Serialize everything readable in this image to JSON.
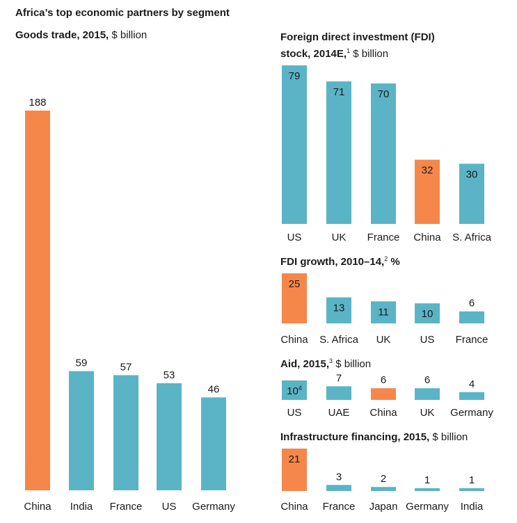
{
  "title": "Africa’s top economic partners by segment",
  "colors": {
    "highlight": "#F5874B",
    "default": "#5AB4C6",
    "text": "#1a1a1a"
  },
  "chart_data": [
    {
      "id": "goods",
      "type": "bar",
      "title_bold": "Goods trade, 2015,",
      "title_sup": "",
      "title_unit": " $ billion",
      "categories": [
        "China",
        "India",
        "France",
        "US",
        "Germany"
      ],
      "values": [
        188,
        59,
        57,
        53,
        46
      ],
      "value_labels": [
        "188",
        "59",
        "57",
        "53",
        "46"
      ],
      "value_sups": [
        "",
        "",
        "",
        "",
        ""
      ],
      "highlight": "China",
      "label_position": "above"
    },
    {
      "id": "fdi",
      "type": "bar",
      "title_bold": "Foreign direct investment (FDI) stock, 2014E,",
      "title_sup": "1",
      "title_unit": " $ billion",
      "categories": [
        "US",
        "UK",
        "France",
        "China",
        "S. Africa"
      ],
      "values": [
        79,
        71,
        70,
        32,
        30
      ],
      "value_labels": [
        "79",
        "71",
        "70",
        "32",
        "30"
      ],
      "value_sups": [
        "",
        "",
        "",
        "",
        ""
      ],
      "highlight": "China",
      "label_position": "inside"
    },
    {
      "id": "growth",
      "type": "bar",
      "title_bold": "FDI growth, 2010–14,",
      "title_sup": "2",
      "title_unit": " %",
      "categories": [
        "China",
        "S. Africa",
        "UK",
        "US",
        "France"
      ],
      "values": [
        25,
        13,
        11,
        10,
        6
      ],
      "value_labels": [
        "25",
        "13",
        "11",
        "10",
        "6"
      ],
      "value_sups": [
        "",
        "",
        "",
        "",
        ""
      ],
      "highlight": "China",
      "label_position": "inside"
    },
    {
      "id": "aid",
      "type": "bar",
      "title_bold": "Aid, 2015,",
      "title_sup": "3",
      "title_unit": " $ billion",
      "categories": [
        "US",
        "UAE",
        "China",
        "UK",
        "Germany"
      ],
      "values": [
        10,
        7,
        6,
        6,
        4
      ],
      "value_labels": [
        "10",
        "7",
        "6",
        "6",
        "4"
      ],
      "value_sups": [
        "4",
        "",
        "",
        "",
        ""
      ],
      "highlight": "China",
      "label_position": "inside"
    },
    {
      "id": "infra",
      "type": "bar",
      "title_bold": "Infrastructure financing, 2015,",
      "title_sup": "",
      "title_unit": " $ billion",
      "categories": [
        "China",
        "France",
        "Japan",
        "Germany",
        "India"
      ],
      "values": [
        21,
        3,
        2,
        1,
        1
      ],
      "value_labels": [
        "21",
        "3",
        "2",
        "1",
        "1"
      ],
      "value_sups": [
        "",
        "",
        "",
        "",
        ""
      ],
      "highlight": "China",
      "label_position": "inside"
    }
  ]
}
